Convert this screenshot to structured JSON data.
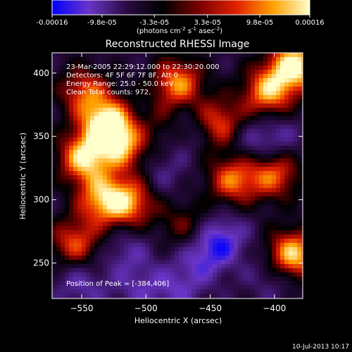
{
  "colorbar": {
    "ticks": [
      "-0.00016",
      "-9.8e-05",
      "-3.3e-05",
      "3.3e-05",
      "9.8e-05",
      "0.00016"
    ],
    "tick_values": [
      -0.00016,
      -9.8e-05,
      -3.3e-05,
      3.3e-05,
      9.8e-05,
      0.00016
    ],
    "range": [
      -0.00016,
      0.00016
    ],
    "units_main": "(photons cm",
    "units_sup1": "-2",
    "units_mid1": " s",
    "units_sup2": "-1",
    "units_mid2": " asec",
    "units_sup3": "-2",
    "units_end": ")",
    "gradient_colors": [
      "#0000ff",
      "#6a35c8",
      "#2b0b45",
      "#000000",
      "#7a0000",
      "#e02000",
      "#ffa000",
      "#ffffcc"
    ]
  },
  "chart_data": {
    "type": "heatmap",
    "title": "Reconstructed RHESSI Image",
    "xlabel": "Heliocentric X (arcsec)",
    "ylabel": "Heliocentric Y (arcsec)",
    "xlim": [
      -573,
      -378
    ],
    "ylim": [
      222,
      416
    ],
    "xticks": [
      -550,
      -500,
      -450,
      -400
    ],
    "yticks": [
      250,
      300,
      350,
      400
    ],
    "annotations": [
      "23-Mar-2005 22:29:12.000 to 22:30:20.000",
      "Detectors: 4F 5F 6F 7F 8F, Att 0",
      "Energy Range: 25.0 - 50.0 keV",
      "Clean    Total counts: 972."
    ],
    "peak_label": "Position of Peak = [-384,406]",
    "peak_position": [
      -384,
      406
    ],
    "features": [
      {
        "x": -530,
        "y": 360,
        "value": 0.00016
      },
      {
        "x": -548,
        "y": 333,
        "value": 0.00014
      },
      {
        "x": -515,
        "y": 343,
        "value": 0.00012
      },
      {
        "x": -534,
        "y": 300,
        "value": 0.00011
      },
      {
        "x": -512,
        "y": 298,
        "value": 0.0001
      },
      {
        "x": -555,
        "y": 265,
        "value": 9e-05
      },
      {
        "x": -548,
        "y": 385,
        "value": 8e-05
      },
      {
        "x": -475,
        "y": 392,
        "value": 0.00011
      },
      {
        "x": -488,
        "y": 355,
        "value": 6e-05
      },
      {
        "x": -443,
        "y": 360,
        "value": 9e-05
      },
      {
        "x": -432,
        "y": 316,
        "value": 0.0001
      },
      {
        "x": -405,
        "y": 385,
        "value": 0.00012
      },
      {
        "x": -400,
        "y": 320,
        "value": 9e-05
      },
      {
        "x": -386,
        "y": 256,
        "value": 0.00015
      },
      {
        "x": -384,
        "y": 406,
        "value": 0.00016
      },
      {
        "x": -470,
        "y": 280,
        "value": 3e-05
      },
      {
        "x": -500,
        "y": 350,
        "value": -0.00012
      },
      {
        "x": -470,
        "y": 355,
        "value": -0.0001
      },
      {
        "x": -420,
        "y": 345,
        "value": -9e-05
      },
      {
        "x": -440,
        "y": 270,
        "value": -0.00012
      },
      {
        "x": -455,
        "y": 255,
        "value": -0.00011
      },
      {
        "x": -475,
        "y": 230,
        "value": -0.0001
      },
      {
        "x": -515,
        "y": 260,
        "value": -9e-05
      },
      {
        "x": -505,
        "y": 230,
        "value": -9e-05
      },
      {
        "x": -555,
        "y": 240,
        "value": -8e-05
      },
      {
        "x": -488,
        "y": 320,
        "value": -8e-05
      },
      {
        "x": -398,
        "y": 350,
        "value": -9e-05
      },
      {
        "x": -400,
        "y": 240,
        "value": -9e-05
      },
      {
        "x": -545,
        "y": 228,
        "value": -7e-05
      }
    ]
  },
  "footer": {
    "timestamp": "10-Jul-2013 10:17"
  }
}
